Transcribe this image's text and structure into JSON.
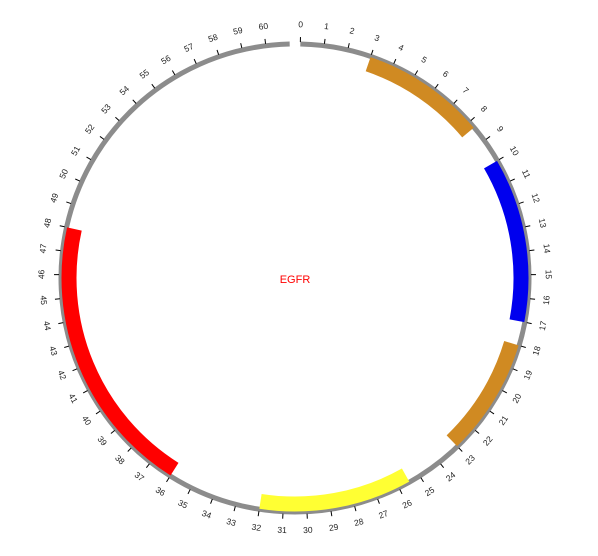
{
  "center_label": "EGFR",
  "center_label_color": "#ff0000",
  "axis": {
    "min": 0,
    "max": 61,
    "tick_step": 1,
    "show_label_max": 60,
    "ring_color": "#8c8c8c",
    "tick_color": "#000000"
  },
  "chart_data": {
    "type": "circular-track",
    "title": "",
    "scale": {
      "min": 0,
      "max": 61,
      "unit": ""
    },
    "tick_labels": [
      "0",
      "1",
      "2",
      "3",
      "4",
      "5",
      "6",
      "7",
      "8",
      "9",
      "10",
      "11",
      "12",
      "13",
      "14",
      "15",
      "16",
      "17",
      "18",
      "19",
      "20",
      "21",
      "22",
      "23",
      "24",
      "25",
      "26",
      "27",
      "28",
      "29",
      "30",
      "31",
      "32",
      "33",
      "34",
      "35",
      "36",
      "37",
      "38",
      "39",
      "40",
      "41",
      "42",
      "43",
      "44",
      "45",
      "46",
      "47",
      "48",
      "49",
      "50",
      "51",
      "52",
      "53",
      "54",
      "55",
      "56",
      "57",
      "58",
      "59",
      "60"
    ],
    "segments": [
      {
        "start": 3.0,
        "end": 8.3,
        "color": "#d08a22"
      },
      {
        "start": 10.0,
        "end": 17.0,
        "color": "#0000ee"
      },
      {
        "start": 18.0,
        "end": 23.0,
        "color": "#d08a22"
      },
      {
        "start": 25.5,
        "end": 32.0,
        "color": "#ffff33"
      },
      {
        "start": 36.0,
        "end": 48.0,
        "color": "#ff0000"
      }
    ]
  }
}
